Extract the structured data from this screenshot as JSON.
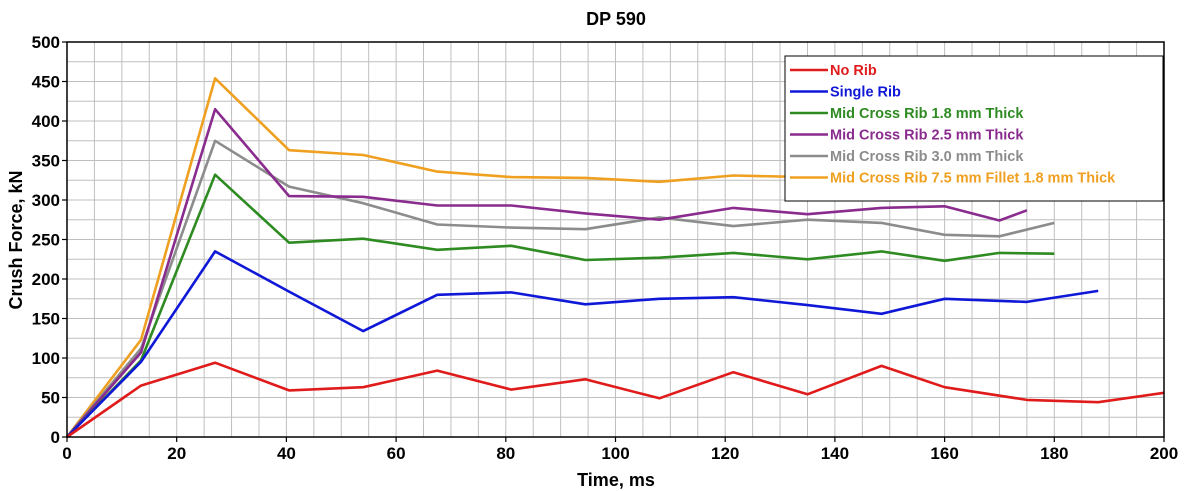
{
  "chart_data": {
    "type": "line",
    "title": "DP 590",
    "xlabel": "Time, ms",
    "ylabel": "Crush Force, kN",
    "xlim": [
      0,
      200
    ],
    "ylim": [
      0,
      500
    ],
    "xticks": [
      0,
      20,
      40,
      60,
      80,
      100,
      120,
      140,
      160,
      180,
      200
    ],
    "yticks": [
      0,
      50,
      100,
      150,
      200,
      250,
      300,
      350,
      400,
      450,
      500
    ],
    "grid": true,
    "legend_position": "top-right",
    "series": [
      {
        "name": "No Rib",
        "color": "#e01b1b",
        "x": [
          0,
          13.5,
          27,
          40.5,
          54,
          67.5,
          81,
          94.5,
          108,
          121.5,
          135,
          148.5,
          160,
          175,
          188,
          200
        ],
        "y": [
          0,
          65,
          94,
          59,
          63,
          84,
          60,
          73,
          49,
          82,
          54,
          90,
          63,
          47,
          44,
          56
        ]
      },
      {
        "name": "Single Rib",
        "color": "#1018d8",
        "x": [
          0,
          13.5,
          27,
          40.5,
          54,
          67.5,
          81,
          94.5,
          108,
          121.5,
          135,
          148.5,
          160,
          175,
          188
        ],
        "y": [
          0,
          95,
          235,
          184,
          134,
          180,
          183,
          168,
          175,
          177,
          167,
          156,
          175,
          171,
          185
        ]
      },
      {
        "name": "Mid Cross Rib 1.8 mm Thick",
        "color": "#2e8b22",
        "x": [
          0,
          13.5,
          27,
          40.5,
          54,
          67.5,
          81,
          94.5,
          108,
          121.5,
          135,
          148.5,
          160,
          170,
          180
        ],
        "y": [
          0,
          97,
          332,
          246,
          251,
          237,
          242,
          224,
          227,
          233,
          225,
          235,
          223,
          233,
          232
        ]
      },
      {
        "name": "Mid Cross Rib 2.5 mm Thick",
        "color": "#8a2b8e",
        "x": [
          0,
          13.5,
          27,
          40.5,
          54,
          67.5,
          81,
          94.5,
          108,
          121.5,
          135,
          148.5,
          160,
          170,
          175
        ],
        "y": [
          0,
          107,
          415,
          305,
          304,
          293,
          293,
          283,
          275,
          290,
          282,
          290,
          292,
          274,
          287
        ]
      },
      {
        "name": "Mid Cross Rib 3.0 mm Thick",
        "color": "#8c8c8c",
        "x": [
          0,
          13.5,
          27,
          40.5,
          54,
          67.5,
          81,
          94.5,
          108,
          121.5,
          135,
          148.5,
          160,
          170,
          180
        ],
        "y": [
          0,
          112,
          375,
          317,
          296,
          269,
          265,
          263,
          278,
          267,
          275,
          271,
          256,
          254,
          271
        ]
      },
      {
        "name": "Mid Cross Rib 7.5 mm Fillet 1.8 mm Thick",
        "color": "#f0a020",
        "x": [
          0,
          13.5,
          27,
          40.5,
          54,
          67.5,
          81,
          94.5,
          108,
          121.5,
          135,
          148.5
        ],
        "y": [
          0,
          123,
          454,
          363,
          357,
          336,
          329,
          328,
          323,
          331,
          329,
          329
        ]
      }
    ]
  }
}
